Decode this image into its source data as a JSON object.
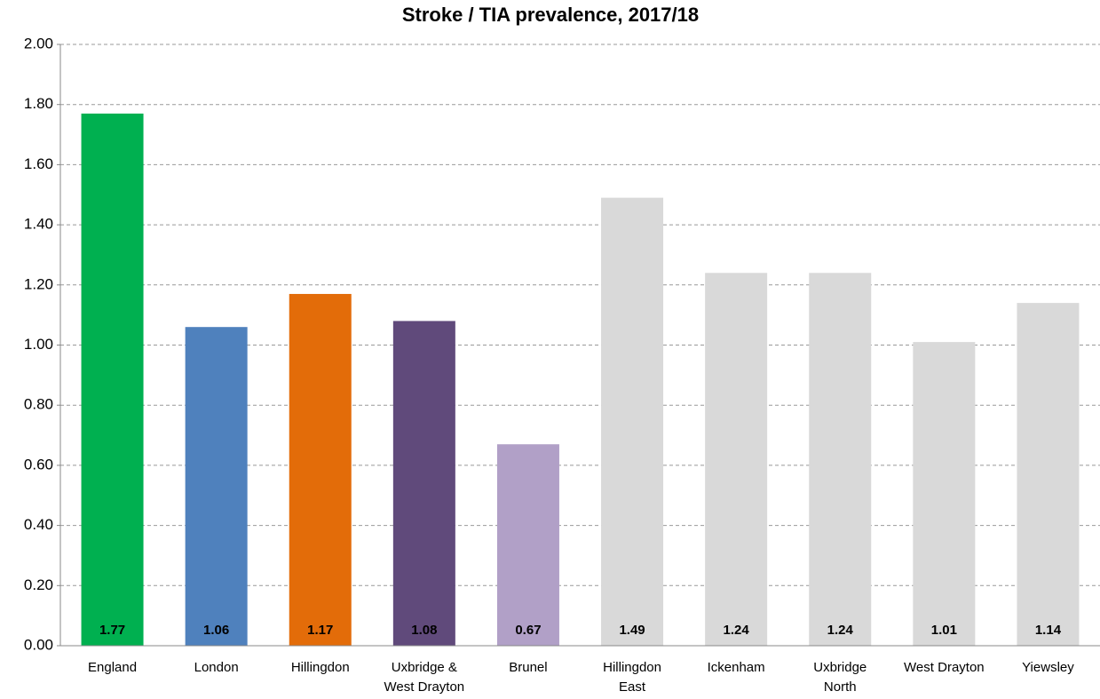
{
  "chart_data": {
    "type": "bar",
    "title": "Stroke / TIA prevalence, 2017/18",
    "categories": [
      "England",
      "London",
      "Hillingdon",
      "Uxbridge &\nWest Drayton",
      "Brunel",
      "Hillingdon\nEast",
      "Ickenham",
      "Uxbridge\nNorth",
      "West Drayton",
      "Yiewsley"
    ],
    "values": [
      1.77,
      1.06,
      1.17,
      1.08,
      0.67,
      1.49,
      1.24,
      1.24,
      1.01,
      1.14
    ],
    "colors": [
      "#00b050",
      "#4f81bd",
      "#e36c09",
      "#604a7b",
      "#b1a0c7",
      "#d9d9d9",
      "#d9d9d9",
      "#d9d9d9",
      "#d9d9d9",
      "#d9d9d9"
    ],
    "ylim": [
      0,
      2
    ],
    "yticks": [
      {
        "value": 0,
        "label": "0.00"
      },
      {
        "value": 0.2,
        "label": "0.20"
      },
      {
        "value": 0.4,
        "label": "0.40"
      },
      {
        "value": 0.6,
        "label": "0.60"
      },
      {
        "value": 0.8,
        "label": "0.80"
      },
      {
        "value": 1,
        "label": "1.00"
      },
      {
        "value": 1.2,
        "label": "1.20"
      },
      {
        "value": 1.4,
        "label": "1.40"
      },
      {
        "value": 1.6,
        "label": "1.60"
      },
      {
        "value": 1.8,
        "label": "1.80"
      },
      {
        "value": 2,
        "label": "2.00"
      }
    ],
    "grid": true
  }
}
